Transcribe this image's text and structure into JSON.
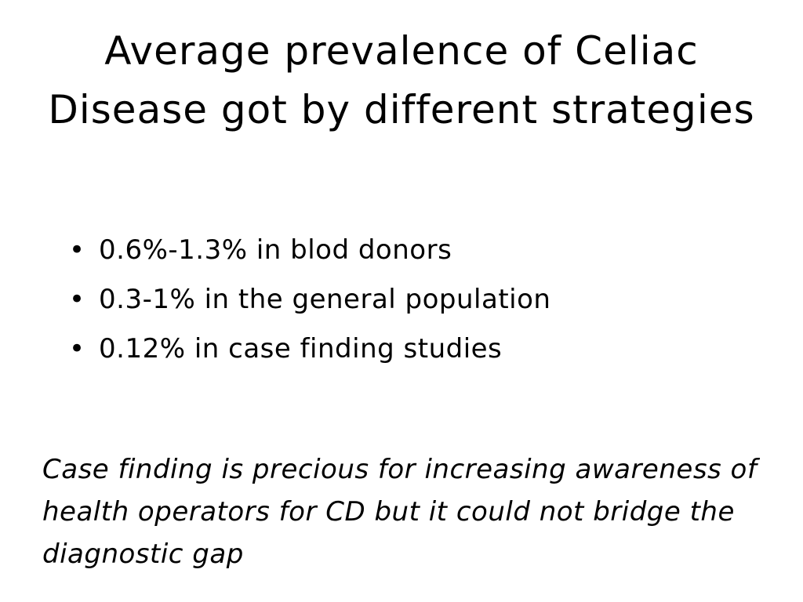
{
  "slide": {
    "title": "Average prevalence of Celiac Disease got by different strategies",
    "bullet_glyph": "•",
    "bullets": [
      "0.6%-1.3% in blod donors",
      "0.3-1% in the general population",
      "0.12% in case finding studies"
    ],
    "note": "Case finding is precious for increasing awareness of health operators for CD but it could not bridge the diagnostic gap"
  }
}
